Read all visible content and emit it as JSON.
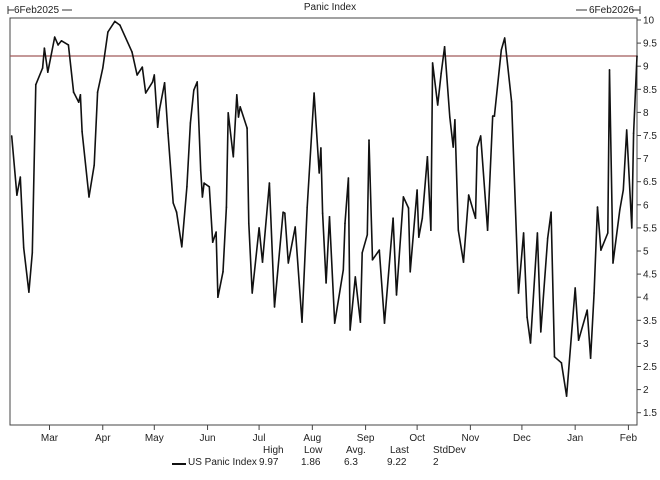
{
  "chart_data": {
    "type": "line",
    "title": "Panic Index",
    "range_start_label": "6Feb2025",
    "range_end_label": "6Feb2026",
    "x_start": "2025-02-06",
    "x_end": "2026-02-06",
    "ylim": [
      1.5,
      10
    ],
    "y_axis_position": "right",
    "y_ticks": [
      "10",
      "9.5",
      "9",
      "8.5",
      "8",
      "7.5",
      "7",
      "6.5",
      "6",
      "5.5",
      "5",
      "4.5",
      "4",
      "3.5",
      "3",
      "2.5",
      "2",
      "1.5"
    ],
    "x_ticks": [
      {
        "label": "Mar",
        "date": "2025-03-01"
      },
      {
        "label": "Apr",
        "date": "2025-04-01"
      },
      {
        "label": "May",
        "date": "2025-05-01"
      },
      {
        "label": "Jun",
        "date": "2025-06-01"
      },
      {
        "label": "Jul",
        "date": "2025-07-01"
      },
      {
        "label": "Aug",
        "date": "2025-08-01"
      },
      {
        "label": "Sep",
        "date": "2025-09-01"
      },
      {
        "label": "Oct",
        "date": "2025-10-01"
      },
      {
        "label": "Nov",
        "date": "2025-11-01"
      },
      {
        "label": "Dec",
        "date": "2025-12-01"
      },
      {
        "label": "Jan",
        "date": "2026-01-01"
      },
      {
        "label": "Feb",
        "date": "2026-02-01"
      }
    ],
    "grid": false,
    "reference_line": {
      "value": 9.22,
      "color": "#a05a5a"
    },
    "line_color": "#111111",
    "series": [
      {
        "name": "US Panic Index",
        "points": [
          [
            "2025-02-07",
            7.49
          ],
          [
            "2025-02-10",
            6.21
          ],
          [
            "2025-02-12",
            6.6
          ],
          [
            "2025-02-14",
            5.07
          ],
          [
            "2025-02-17",
            4.11
          ],
          [
            "2025-02-19",
            4.96
          ],
          [
            "2025-02-21",
            8.6
          ],
          [
            "2025-02-25",
            8.96
          ],
          [
            "2025-02-26",
            9.39
          ],
          [
            "2025-02-28",
            8.87
          ],
          [
            "2025-03-04",
            9.63
          ],
          [
            "2025-03-06",
            9.46
          ],
          [
            "2025-03-08",
            9.55
          ],
          [
            "2025-03-12",
            9.46
          ],
          [
            "2025-03-15",
            8.44
          ],
          [
            "2025-03-18",
            8.22
          ],
          [
            "2025-03-19",
            8.38
          ],
          [
            "2025-03-20",
            7.58
          ],
          [
            "2025-03-24",
            6.17
          ],
          [
            "2025-03-27",
            6.86
          ],
          [
            "2025-03-29",
            8.44
          ],
          [
            "2025-04-01",
            8.96
          ],
          [
            "2025-04-04",
            9.74
          ],
          [
            "2025-04-08",
            9.97
          ],
          [
            "2025-04-11",
            9.89
          ],
          [
            "2025-04-18",
            9.31
          ],
          [
            "2025-04-21",
            8.81
          ],
          [
            "2025-04-24",
            8.98
          ],
          [
            "2025-04-26",
            8.42
          ],
          [
            "2025-04-30",
            8.66
          ],
          [
            "2025-05-01",
            8.81
          ],
          [
            "2025-05-03",
            7.68
          ],
          [
            "2025-05-04",
            8.05
          ],
          [
            "2025-05-07",
            8.64
          ],
          [
            "2025-05-09",
            7.55
          ],
          [
            "2025-05-12",
            6.04
          ],
          [
            "2025-05-14",
            5.84
          ],
          [
            "2025-05-17",
            5.09
          ],
          [
            "2025-05-20",
            6.39
          ],
          [
            "2025-05-22",
            7.77
          ],
          [
            "2025-05-24",
            8.48
          ],
          [
            "2025-05-26",
            8.66
          ],
          [
            "2025-05-28",
            6.75
          ],
          [
            "2025-05-29",
            6.17
          ],
          [
            "2025-05-30",
            6.47
          ],
          [
            "2025-06-02",
            6.39
          ],
          [
            "2025-06-04",
            5.19
          ],
          [
            "2025-06-06",
            5.41
          ],
          [
            "2025-06-07",
            4.0
          ],
          [
            "2025-06-10",
            4.55
          ],
          [
            "2025-06-12",
            5.95
          ],
          [
            "2025-06-13",
            7.99
          ],
          [
            "2025-06-16",
            7.04
          ],
          [
            "2025-06-18",
            8.38
          ],
          [
            "2025-06-19",
            7.9
          ],
          [
            "2025-06-20",
            8.12
          ],
          [
            "2025-06-24",
            7.66
          ],
          [
            "2025-06-25",
            5.6
          ],
          [
            "2025-06-27",
            4.09
          ],
          [
            "2025-07-01",
            5.5
          ],
          [
            "2025-07-03",
            4.76
          ],
          [
            "2025-07-07",
            6.47
          ],
          [
            "2025-07-10",
            3.79
          ],
          [
            "2025-07-15",
            5.84
          ],
          [
            "2025-07-16",
            5.82
          ],
          [
            "2025-07-18",
            4.74
          ],
          [
            "2025-07-22",
            5.52
          ],
          [
            "2025-07-26",
            3.46
          ],
          [
            "2025-07-29",
            5.95
          ],
          [
            "2025-08-02",
            8.42
          ],
          [
            "2025-08-05",
            6.69
          ],
          [
            "2025-08-06",
            7.23
          ],
          [
            "2025-08-07",
            5.82
          ],
          [
            "2025-08-09",
            4.31
          ],
          [
            "2025-08-11",
            5.74
          ],
          [
            "2025-08-14",
            3.44
          ],
          [
            "2025-08-19",
            4.59
          ],
          [
            "2025-08-20",
            5.6
          ],
          [
            "2025-08-22",
            6.58
          ],
          [
            "2025-08-23",
            3.29
          ],
          [
            "2025-08-26",
            4.44
          ],
          [
            "2025-08-29",
            3.46
          ],
          [
            "2025-08-30",
            4.96
          ],
          [
            "2025-09-02",
            5.35
          ],
          [
            "2025-09-03",
            7.4
          ],
          [
            "2025-09-05",
            4.81
          ],
          [
            "2025-09-09",
            5.02
          ],
          [
            "2025-09-12",
            3.44
          ],
          [
            "2025-09-17",
            5.71
          ],
          [
            "2025-09-19",
            4.05
          ],
          [
            "2025-09-23",
            6.17
          ],
          [
            "2025-09-26",
            5.93
          ],
          [
            "2025-09-27",
            4.55
          ],
          [
            "2025-10-01",
            6.32
          ],
          [
            "2025-10-02",
            5.3
          ],
          [
            "2025-10-04",
            5.71
          ],
          [
            "2025-10-07",
            7.04
          ],
          [
            "2025-10-09",
            5.45
          ],
          [
            "2025-10-10",
            9.07
          ],
          [
            "2025-10-13",
            8.16
          ],
          [
            "2025-10-15",
            8.85
          ],
          [
            "2025-10-17",
            9.42
          ],
          [
            "2025-10-20",
            7.9
          ],
          [
            "2025-10-22",
            7.25
          ],
          [
            "2025-10-23",
            7.84
          ],
          [
            "2025-10-25",
            5.45
          ],
          [
            "2025-10-28",
            4.76
          ],
          [
            "2025-10-31",
            6.21
          ],
          [
            "2025-11-04",
            5.71
          ],
          [
            "2025-11-05",
            7.25
          ],
          [
            "2025-11-07",
            7.49
          ],
          [
            "2025-11-11",
            5.45
          ],
          [
            "2025-11-14",
            7.92
          ],
          [
            "2025-11-15",
            7.92
          ],
          [
            "2025-11-19",
            9.35
          ],
          [
            "2025-11-21",
            9.61
          ],
          [
            "2025-11-25",
            8.23
          ],
          [
            "2025-11-29",
            4.09
          ],
          [
            "2025-12-02",
            5.39
          ],
          [
            "2025-12-04",
            3.57
          ],
          [
            "2025-12-06",
            3.01
          ],
          [
            "2025-12-10",
            5.39
          ],
          [
            "2025-12-12",
            3.25
          ],
          [
            "2025-12-16",
            5.28
          ],
          [
            "2025-12-18",
            5.84
          ],
          [
            "2025-12-20",
            2.71
          ],
          [
            "2025-12-24",
            2.58
          ],
          [
            "2025-12-27",
            1.86
          ],
          [
            "2026-01-01",
            4.2
          ],
          [
            "2026-01-03",
            3.07
          ],
          [
            "2026-01-08",
            3.72
          ],
          [
            "2026-01-10",
            2.68
          ],
          [
            "2026-01-12",
            4.09
          ],
          [
            "2026-01-14",
            5.95
          ],
          [
            "2026-01-16",
            5.02
          ],
          [
            "2026-01-20",
            5.39
          ],
          [
            "2026-01-21",
            8.92
          ],
          [
            "2026-01-23",
            4.74
          ],
          [
            "2026-01-27",
            5.89
          ],
          [
            "2026-01-29",
            6.32
          ],
          [
            "2026-01-31",
            7.62
          ],
          [
            "2026-02-03",
            5.5
          ],
          [
            "2026-02-04",
            7.55
          ],
          [
            "2026-02-06",
            9.22
          ]
        ]
      }
    ],
    "stats": {
      "headers": [
        "High",
        "Low",
        "Avg.",
        "Last",
        "StdDev"
      ],
      "series_label": "US Panic Index",
      "values": [
        "9.97",
        "1.86",
        "6.3",
        "9.22",
        "2"
      ]
    }
  }
}
